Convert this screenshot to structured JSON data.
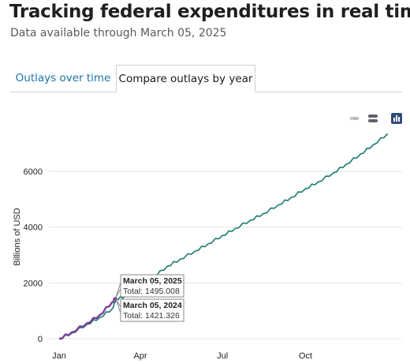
{
  "page": {
    "title": "Tracking federal expenditures in real time",
    "subtitle": "Data available through March 05, 2025"
  },
  "tabs": [
    {
      "label": "Outlays over time",
      "active": false
    },
    {
      "label": "Compare outlays by year",
      "active": true
    }
  ],
  "toolbar": {
    "icons": [
      "line-chart-toggle-icon",
      "table-view-icon",
      "bar-chart-view-icon"
    ]
  },
  "chart_data": {
    "type": "line",
    "title": "",
    "xlabel": "",
    "ylabel": "Billions of USD",
    "x_ticks": [
      "Jan",
      "Apr",
      "Jul",
      "Oct"
    ],
    "y_ticks": [
      0,
      2000,
      4000,
      6000
    ],
    "ylim": [
      0,
      7500
    ],
    "grid": "horizontal",
    "series": [
      {
        "color": "#1a7a6e",
        "points": [
          [
            "Jan 01",
            0
          ],
          [
            "Jan 15",
            200
          ],
          [
            "Feb 01",
            520
          ],
          [
            "Feb 15",
            760
          ],
          [
            "Mar 01",
            1080
          ],
          [
            "Mar 05",
            1421.326
          ],
          [
            "Mar 15",
            1520
          ],
          [
            "Apr 01",
            1870
          ],
          [
            "Apr 15",
            2200
          ],
          [
            "May 01",
            2600
          ],
          [
            "May 15",
            2850
          ],
          [
            "Jun 01",
            3150
          ],
          [
            "Jun 15",
            3400
          ],
          [
            "Jul 01",
            3700
          ],
          [
            "Jul 15",
            3950
          ],
          [
            "Aug 01",
            4250
          ],
          [
            "Aug 15",
            4480
          ],
          [
            "Sep 01",
            4800
          ],
          [
            "Sep 15",
            5060
          ],
          [
            "Oct 01",
            5380
          ],
          [
            "Oct 15",
            5620
          ],
          [
            "Nov 01",
            5950
          ],
          [
            "Nov 15",
            6250
          ],
          [
            "Dec 01",
            6620
          ],
          [
            "Dec 15",
            6950
          ],
          [
            "Dec 31",
            7350
          ]
        ]
      },
      {
        "color": "#7b3f98",
        "points": [
          [
            "Jan 01",
            0
          ],
          [
            "Jan 15",
            230
          ],
          [
            "Feb 01",
            560
          ],
          [
            "Feb 15",
            850
          ],
          [
            "Mar 01",
            1320
          ],
          [
            "Mar 05",
            1495.008
          ]
        ]
      }
    ],
    "tooltips": [
      {
        "date": "March 05, 2025",
        "label": "Total: 1495.008"
      },
      {
        "date": "March 05, 2024",
        "label": "Total: 1421.326"
      }
    ]
  }
}
